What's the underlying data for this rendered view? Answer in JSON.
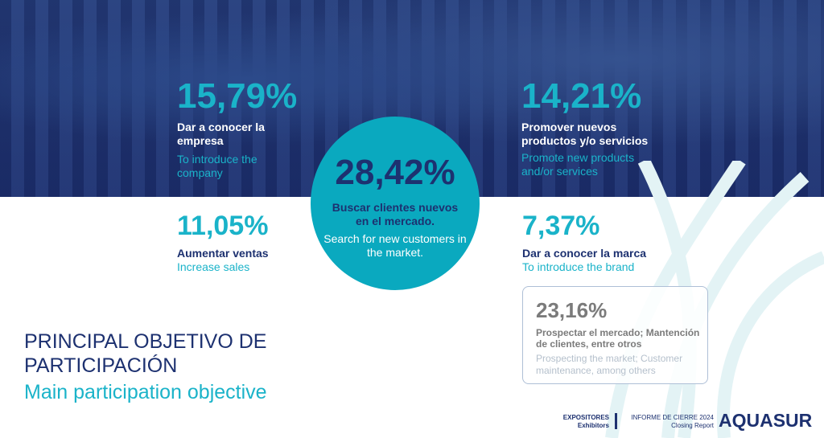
{
  "items": [
    {
      "pct": "15,79%",
      "es": "Dar a conocer la empresa",
      "en": "To introduce the company"
    },
    {
      "pct": "14,21%",
      "es": "Promover nuevos productos y/o servicios",
      "en": "Promote new products and/or services"
    },
    {
      "pct": "28,42%",
      "es": "Buscar clientes nuevos en el mercado.",
      "en": "Search for new customers in the market."
    },
    {
      "pct": "11,05%",
      "es": "Aumentar ventas",
      "en": "Increase sales"
    },
    {
      "pct": "7,37%",
      "es": "Dar a conocer la marca",
      "en": "To introduce the brand"
    },
    {
      "pct": "23,16%",
      "es": "Prospectar el mercado; Mantención de clientes, entre otros",
      "en": "Prospecting the market; Customer maintenance, among others"
    }
  ],
  "title": {
    "line1": "PRINCIPAL OBJETIVO DE",
    "line2": "PARTICIPACIÓN",
    "en": "Main participation objective"
  },
  "footer": {
    "section": "EXPOSITORES",
    "section_en": "Exhibitors",
    "report": "INFORME DE CIERRE 2024",
    "report_en": "Closing Report",
    "logo": "AQUASUR"
  },
  "colors": {
    "navy": "#1d3170",
    "teal": "#1ab3c9"
  }
}
